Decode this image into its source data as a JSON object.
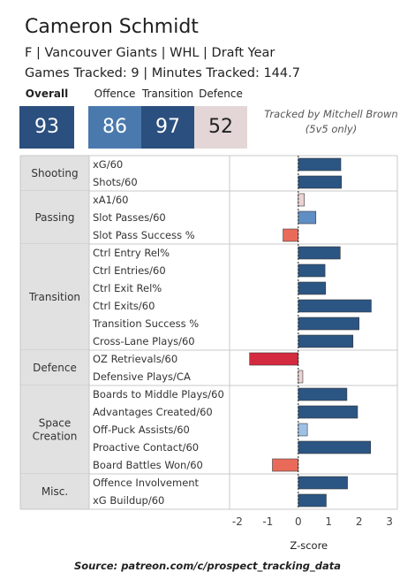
{
  "player": {
    "name": "Cameron Schmidt",
    "info_line": "F | Vancouver Giants | WHL | Draft Year",
    "tracking_line": "Games Tracked: 9 | Minutes Tracked: 144.7"
  },
  "scores": [
    {
      "label": "Overall",
      "value": "93",
      "color": "#2b4f7e"
    },
    {
      "label": "Offence",
      "value": "86",
      "color": "#4a79ad"
    },
    {
      "label": "Transition",
      "value": "97",
      "color": "#2b4f7e"
    },
    {
      "label": "Defence",
      "value": "52",
      "color": "#e4d6d6"
    }
  ],
  "tracked_note": [
    "Tracked by Mitchell Brown",
    "(5v5 only)"
  ],
  "source": "Source: patreon.com/c/prospect_tracking_data",
  "chart_data": {
    "type": "bar",
    "orientation": "horizontal",
    "xlabel": "Z-score",
    "xlim": [
      -2.2,
      3.2
    ],
    "xticks": [
      -2,
      -1,
      0,
      1,
      2,
      3
    ],
    "groups": [
      {
        "name": "Shooting",
        "metrics": [
          {
            "label": "xG/60",
            "value": 1.4
          },
          {
            "label": "Shots/60",
            "value": 1.42
          }
        ]
      },
      {
        "name": "Passing",
        "metrics": [
          {
            "label": "xA1/60",
            "value": 0.2
          },
          {
            "label": "Slot Passes/60",
            "value": 0.58
          },
          {
            "label": "Slot Pass Success %",
            "value": -0.5
          }
        ]
      },
      {
        "name": "Transition",
        "metrics": [
          {
            "label": "Ctrl Entry Rel%",
            "value": 1.38
          },
          {
            "label": "Ctrl Entries/60",
            "value": 0.88
          },
          {
            "label": "Ctrl Exit Rel%",
            "value": 0.9
          },
          {
            "label": "Ctrl Exits/60",
            "value": 2.4
          },
          {
            "label": "Transition Success %",
            "value": 2.0
          },
          {
            "label": "Cross-Lane Plays/60",
            "value": 1.8
          }
        ]
      },
      {
        "name": "Defence",
        "metrics": [
          {
            "label": "OZ Retrievals/60",
            "value": -1.6
          },
          {
            "label": "Defensive Plays/CA",
            "value": 0.15
          }
        ]
      },
      {
        "name": "Space Creation",
        "metrics": [
          {
            "label": "Boards to Middle Plays/60",
            "value": 1.6
          },
          {
            "label": "Advantages Created/60",
            "value": 1.95
          },
          {
            "label": "Off-Puck Assists/60",
            "value": 0.3
          },
          {
            "label": "Proactive Contact/60",
            "value": 2.38
          },
          {
            "label": "Board Battles Won/60",
            "value": -0.85
          }
        ]
      },
      {
        "name": "Misc.",
        "metrics": [
          {
            "label": "Offence Involvement",
            "value": 1.62
          },
          {
            "label": "xG Buildup/60",
            "value": 0.92
          }
        ]
      }
    ],
    "colors": {
      "strong_positive": "#2b5583",
      "positive": "#5f8ec4",
      "slight_positive": "#9dc0e6",
      "near_zero": "#ecd3d3",
      "negative": "#ea6a5a",
      "strong_negative": "#d42a3f",
      "group_band": "#e1e1e1",
      "divider": "#c8c8c8"
    }
  }
}
